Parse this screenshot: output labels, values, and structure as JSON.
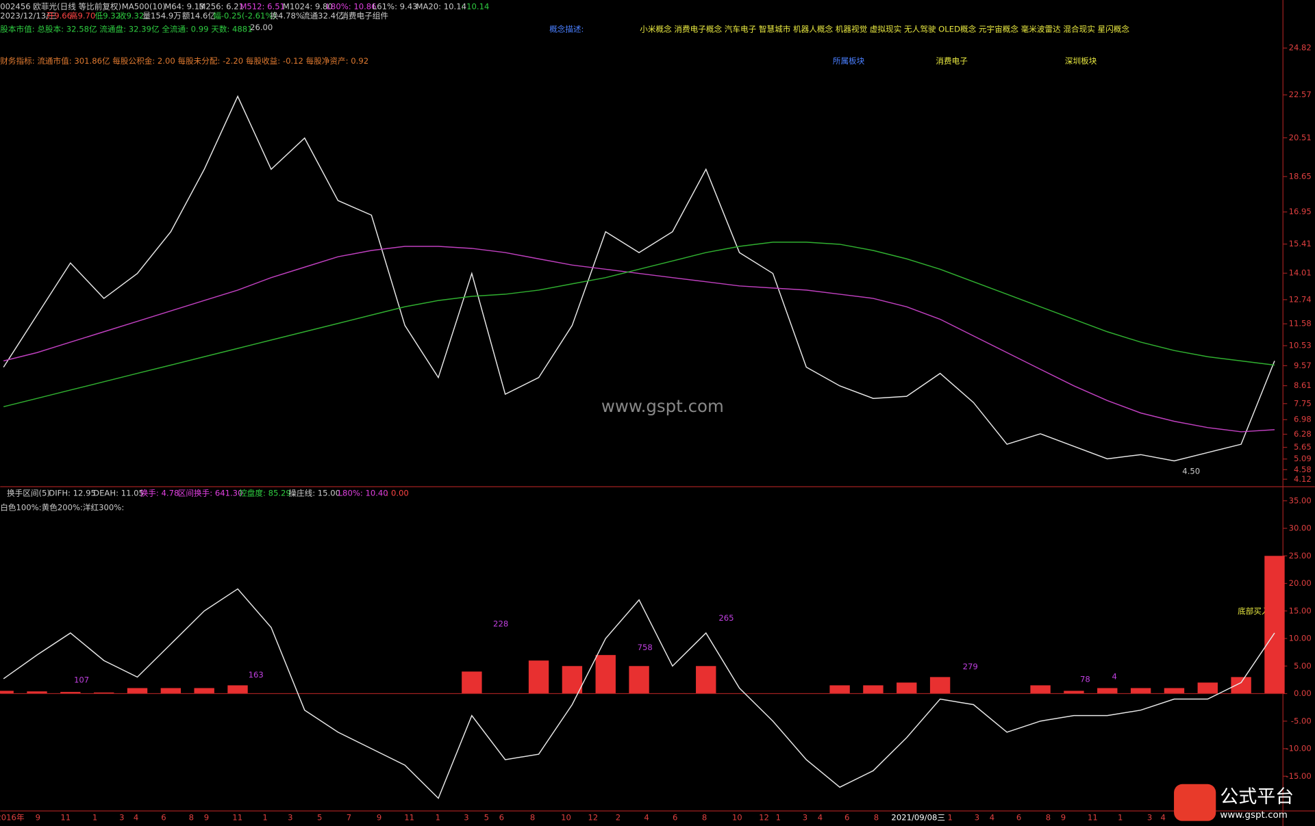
{
  "header": {
    "line1": [
      "002456 欧菲光(日线 等比前复权)",
      "MA500(10)",
      "M64: 9.13",
      "M256: 6.21",
      "M512: 6.51",
      "M1024: 9.80",
      "L80%: 10.86",
      "L61%: 9.43",
      "MA20: 10.14",
      ": 10.14"
    ],
    "line2": [
      "2023/12/13/三",
      "开9.66",
      "高9.70",
      "低9.32",
      "收9.32",
      "量154.9万",
      "额14.6亿",
      "幅-0.25(-2.61%)",
      "换4.78%",
      "流通32.4亿",
      "消费电子组件"
    ],
    "capital": "股本市值: 总股本: 32.58亿 流通盘: 32.39亿 全流通: 0.99 天数: 4881",
    "concept_label": "概念描述:",
    "concepts": "小米概念 消费电子概念 汽车电子 智慧城市 机器人概念 机器视觉 虚拟现实 无人驾驶 OLED概念 元宇宙概念 毫米波雷达 混合现实 星闪概念",
    "finance": "财务指标: 流通市值: 301.86亿 每股公积金: 2.00 每股未分配: -2.20 每股收益: -0.12 每股净资产: 0.92",
    "sector_label": "所属板块",
    "sector1": "消费电子",
    "sector2": "深圳板块"
  },
  "annotations": {
    "high": "26.00",
    "low": "4.50",
    "watermark": "www.gspt.com"
  },
  "lower_header": [
    "换手区间(5)",
    "DIFH: 12.95",
    "DEAH: 11.05",
    "换手: 4.78",
    "区间换手: 641.30",
    "控盘度: 85.29",
    "操庄线: 15.00",
    "L80%: 10.40",
    ": 0.00"
  ],
  "lower_legend": "白色100%:黄色200%:洋红300%:",
  "lower_notes": [
    "107",
    "163",
    "228",
    "758",
    "265",
    "279",
    "78",
    "4",
    "底部买入"
  ],
  "chart_data": [
    {
      "type": "line",
      "ylim": [
        3.8,
        26.0
      ],
      "yticks": [
        24.82,
        22.57,
        20.51,
        18.65,
        16.95,
        15.41,
        14.01,
        12.74,
        11.58,
        10.53,
        9.57,
        8.61,
        7.75,
        6.98,
        6.28,
        5.65,
        5.09,
        4.58,
        4.12
      ],
      "series": [
        {
          "color": "#e8e8e8",
          "values": [
            9.5,
            12,
            14.5,
            12.8,
            14,
            16,
            19,
            22.5,
            19,
            20.5,
            17.5,
            16.8,
            11.5,
            9,
            14,
            8.2,
            9,
            11.5,
            16,
            15,
            16,
            19,
            15,
            14,
            9.5,
            8.6,
            8,
            8.1,
            9.2,
            7.8,
            5.8,
            6.3,
            5.7,
            5.1,
            5.3,
            5,
            5.4,
            5.8,
            9.8
          ]
        },
        {
          "color": "#c040c0",
          "values": [
            9.8,
            10.2,
            10.7,
            11.2,
            11.7,
            12.2,
            12.7,
            13.2,
            13.8,
            14.3,
            14.8,
            15.1,
            15.3,
            15.3,
            15.2,
            15,
            14.7,
            14.4,
            14.2,
            14,
            13.8,
            13.6,
            13.4,
            13.3,
            13.2,
            13,
            12.8,
            12.4,
            11.8,
            11,
            10.2,
            9.4,
            8.6,
            7.9,
            7.3,
            6.9,
            6.6,
            6.4,
            6.5
          ]
        },
        {
          "color": "#30b030",
          "values": [
            7.6,
            8,
            8.4,
            8.8,
            9.2,
            9.6,
            10,
            10.4,
            10.8,
            11.2,
            11.6,
            12,
            12.4,
            12.7,
            12.9,
            13,
            13.2,
            13.5,
            13.8,
            14.2,
            14.6,
            15,
            15.3,
            15.5,
            15.5,
            15.4,
            15.1,
            14.7,
            14.2,
            13.6,
            13,
            12.4,
            11.8,
            11.2,
            10.7,
            10.3,
            10,
            9.8,
            9.6
          ]
        }
      ]
    },
    {
      "type": "combo",
      "ylim": [
        -21.3,
        37.4
      ],
      "yticks": [
        {
          "value": 35,
          "label": "35.00"
        },
        {
          "value": 30,
          "label": "30.00"
        },
        {
          "value": 25,
          "label": "25.00"
        },
        {
          "value": 20,
          "label": "20.00"
        },
        {
          "value": 15,
          "label": "15.00"
        },
        {
          "value": 10,
          "label": "10.00"
        },
        {
          "value": 5,
          "label": "5.00"
        },
        {
          "value": 0,
          "label": "0.00"
        },
        {
          "value": -5,
          "label": "-5.00"
        },
        {
          "value": -10,
          "label": "-10.00"
        },
        {
          "value": -15,
          "label": "-15.00"
        }
      ],
      "bars": {
        "color": "#e83030",
        "values": [
          0.5,
          0.4,
          0.3,
          0.2,
          1,
          1,
          1,
          1.5,
          0,
          0,
          0,
          0,
          0,
          0,
          4,
          0,
          6,
          5,
          7,
          5,
          0,
          5,
          0,
          0,
          0,
          1.5,
          1.5,
          2,
          3,
          0,
          0,
          1.5,
          0.5,
          1,
          1,
          1,
          2,
          3,
          25
        ]
      },
      "series": [
        {
          "color": "#e8e8e8",
          "values": [
            2.7,
            7,
            11,
            6,
            3,
            9,
            15,
            19,
            12,
            -3,
            -7,
            -10,
            -13,
            -19,
            -4,
            -12,
            -11,
            -2,
            10,
            17,
            5,
            11,
            1,
            -5,
            -12,
            -17,
            -14,
            -8,
            -1,
            -2,
            -7,
            -5,
            -4,
            -4,
            -3,
            -1,
            -1,
            2,
            11
          ]
        }
      ]
    }
  ],
  "x_axis_labels": [
    "2016年",
    "9",
    "11",
    "1",
    "3",
    "4",
    "6",
    "8",
    "9",
    "11",
    "1",
    "3",
    "5",
    "7",
    "9",
    "11",
    "1",
    "3",
    "5",
    "6",
    "8",
    "10",
    "12",
    "2",
    "4",
    "6",
    "8",
    "10",
    "12",
    "1",
    "3",
    "4",
    "6",
    "8",
    "2021/09/08三",
    "1",
    "3",
    "4",
    "6",
    "8",
    "9",
    "11",
    "1",
    "3",
    "4"
  ],
  "footer": {
    "logo": "公式平台",
    "site": "www.gspt.com"
  }
}
